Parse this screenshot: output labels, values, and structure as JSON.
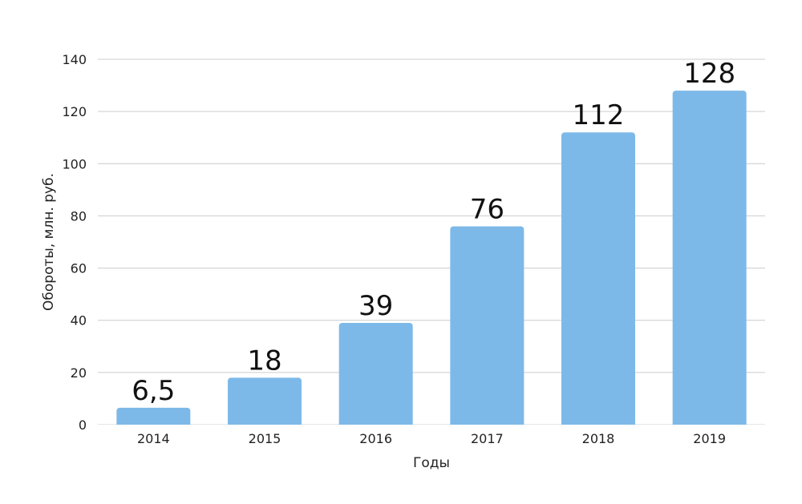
{
  "chart_data": {
    "type": "bar",
    "categories": [
      "2014",
      "2015",
      "2016",
      "2017",
      "2018",
      "2019"
    ],
    "values": [
      6.5,
      18,
      39,
      76,
      112,
      128
    ],
    "value_labels": [
      "6,5",
      "18",
      "39",
      "76",
      "112",
      "128"
    ],
    "xlabel": "Годы",
    "ylabel": "Обороты, млн. руб.",
    "ylim": [
      0,
      140
    ],
    "yticks": [
      0,
      20,
      40,
      60,
      80,
      100,
      120,
      140
    ],
    "grid": true,
    "bar_color": "#7db9e8",
    "grid_color": "#cccccc"
  }
}
